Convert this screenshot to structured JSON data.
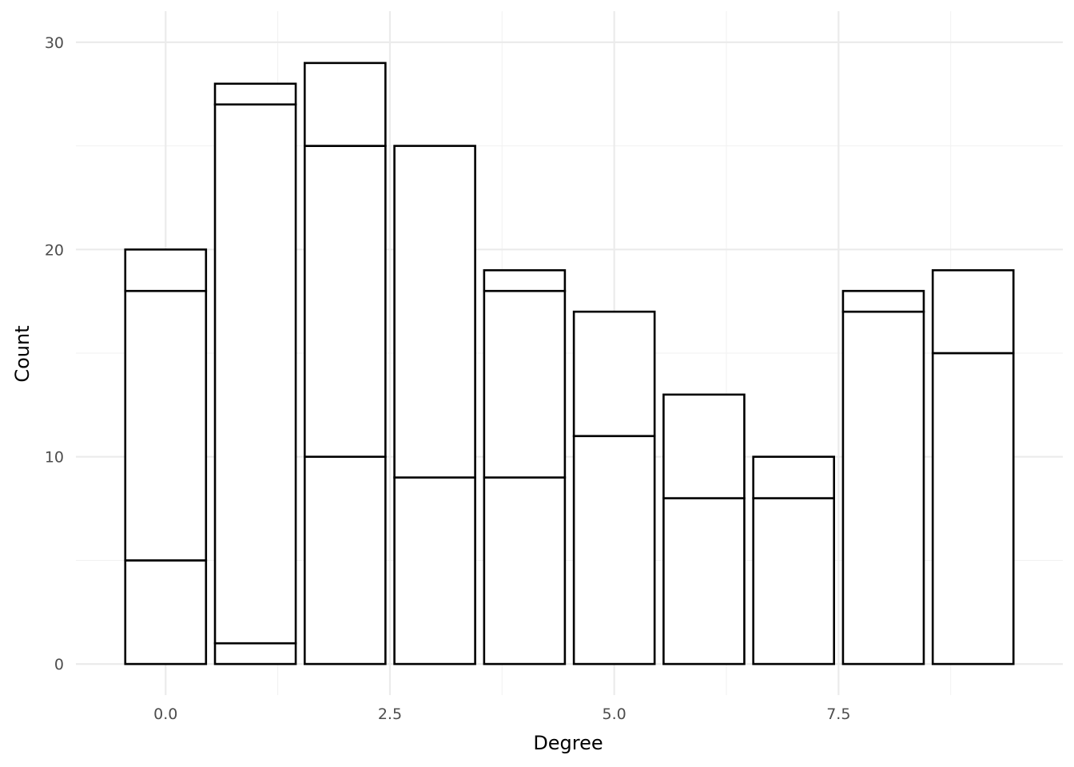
{
  "chart_data": {
    "type": "bar",
    "subtype": "stacked",
    "title": "",
    "xlabel": "Degree",
    "ylabel": "Count",
    "categories": [
      0,
      1,
      2,
      3,
      4,
      5,
      6,
      7,
      8,
      9
    ],
    "stacks": [
      [
        5,
        13,
        2
      ],
      [
        1,
        26,
        1
      ],
      [
        10,
        15,
        4
      ],
      [
        9,
        16
      ],
      [
        9,
        9,
        1
      ],
      [
        11,
        6
      ],
      [
        8,
        5
      ],
      [
        8,
        2
      ],
      [
        17,
        1
      ],
      [
        15,
        4
      ]
    ],
    "totals": [
      20,
      28,
      29,
      25,
      19,
      17,
      13,
      10,
      18,
      19
    ],
    "bar_fill": "#ffffff",
    "bar_outline": "#000000",
    "xlim": [
      -0.5,
      9.5
    ],
    "ylim": [
      0,
      30
    ],
    "x_ticks": [
      0.0,
      2.5,
      5.0,
      7.5
    ],
    "x_tick_labels": [
      "0.0",
      "2.5",
      "5.0",
      "7.5"
    ],
    "y_ticks": [
      0,
      10,
      20,
      30
    ],
    "y_tick_labels": [
      "0",
      "10",
      "20",
      "30"
    ],
    "grid": true,
    "legend": "none"
  }
}
